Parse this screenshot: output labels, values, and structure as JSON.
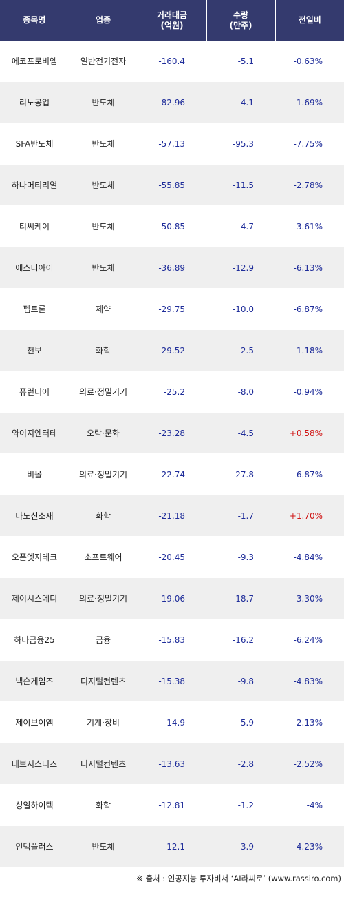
{
  "headers": {
    "name": "종목명",
    "sector": "업종",
    "amount_line1": "거래대금",
    "amount_line2": "(억원)",
    "volume_line1": "수량",
    "volume_line2": "(만주)",
    "change": "전일비"
  },
  "colors": {
    "header_bg": "#343a6e",
    "value_blue": "#1f2d9a",
    "value_red": "#d01515",
    "stripe": "#efefef"
  },
  "rows": [
    {
      "name": "에코프로비엠",
      "sector": "일반전기전자",
      "amount": "-160.4",
      "volume": "-5.1",
      "change": "-0.63%",
      "up": false
    },
    {
      "name": "리노공업",
      "sector": "반도체",
      "amount": "-82.96",
      "volume": "-4.1",
      "change": "-1.69%",
      "up": false
    },
    {
      "name": "SFA반도체",
      "sector": "반도체",
      "amount": "-57.13",
      "volume": "-95.3",
      "change": "-7.75%",
      "up": false
    },
    {
      "name": "하나머티리얼",
      "sector": "반도체",
      "amount": "-55.85",
      "volume": "-11.5",
      "change": "-2.78%",
      "up": false
    },
    {
      "name": "티씨케이",
      "sector": "반도체",
      "amount": "-50.85",
      "volume": "-4.7",
      "change": "-3.61%",
      "up": false
    },
    {
      "name": "에스티아이",
      "sector": "반도체",
      "amount": "-36.89",
      "volume": "-12.9",
      "change": "-6.13%",
      "up": false
    },
    {
      "name": "펩트론",
      "sector": "제약",
      "amount": "-29.75",
      "volume": "-10.0",
      "change": "-6.87%",
      "up": false
    },
    {
      "name": "천보",
      "sector": "화학",
      "amount": "-29.52",
      "volume": "-2.5",
      "change": "-1.18%",
      "up": false
    },
    {
      "name": "퓨런티어",
      "sector": "의료·정밀기기",
      "amount": "-25.2",
      "volume": "-8.0",
      "change": "-0.94%",
      "up": false
    },
    {
      "name": "와이지엔터테",
      "sector": "오락·문화",
      "amount": "-23.28",
      "volume": "-4.5",
      "change": "+0.58%",
      "up": true
    },
    {
      "name": "비올",
      "sector": "의료·정밀기기",
      "amount": "-22.74",
      "volume": "-27.8",
      "change": "-6.87%",
      "up": false
    },
    {
      "name": "나노신소재",
      "sector": "화학",
      "amount": "-21.18",
      "volume": "-1.7",
      "change": "+1.70%",
      "up": true
    },
    {
      "name": "오픈엣지테크",
      "sector": "소프트웨어",
      "amount": "-20.45",
      "volume": "-9.3",
      "change": "-4.84%",
      "up": false
    },
    {
      "name": "제이시스메디",
      "sector": "의료·정밀기기",
      "amount": "-19.06",
      "volume": "-18.7",
      "change": "-3.30%",
      "up": false
    },
    {
      "name": "하나금융25",
      "sector": "금융",
      "amount": "-15.83",
      "volume": "-16.2",
      "change": "-6.24%",
      "up": false
    },
    {
      "name": "넥슨게임즈",
      "sector": "디지털컨텐츠",
      "amount": "-15.38",
      "volume": "-9.8",
      "change": "-4.83%",
      "up": false
    },
    {
      "name": "제이브이엠",
      "sector": "기계·장비",
      "amount": "-14.9",
      "volume": "-5.9",
      "change": "-2.13%",
      "up": false
    },
    {
      "name": "데브시스터즈",
      "sector": "디지털컨텐츠",
      "amount": "-13.63",
      "volume": "-2.8",
      "change": "-2.52%",
      "up": false
    },
    {
      "name": "성일하이텍",
      "sector": "화학",
      "amount": "-12.81",
      "volume": "-1.2",
      "change": "-4%",
      "up": false
    },
    {
      "name": "인텍플러스",
      "sector": "반도체",
      "amount": "-12.1",
      "volume": "-3.9",
      "change": "-4.23%",
      "up": false
    }
  ],
  "footer": {
    "source": "※ 출처 : 인공지능 투자비서 ‘AI라씨로’ (www.rassiro.com)"
  }
}
